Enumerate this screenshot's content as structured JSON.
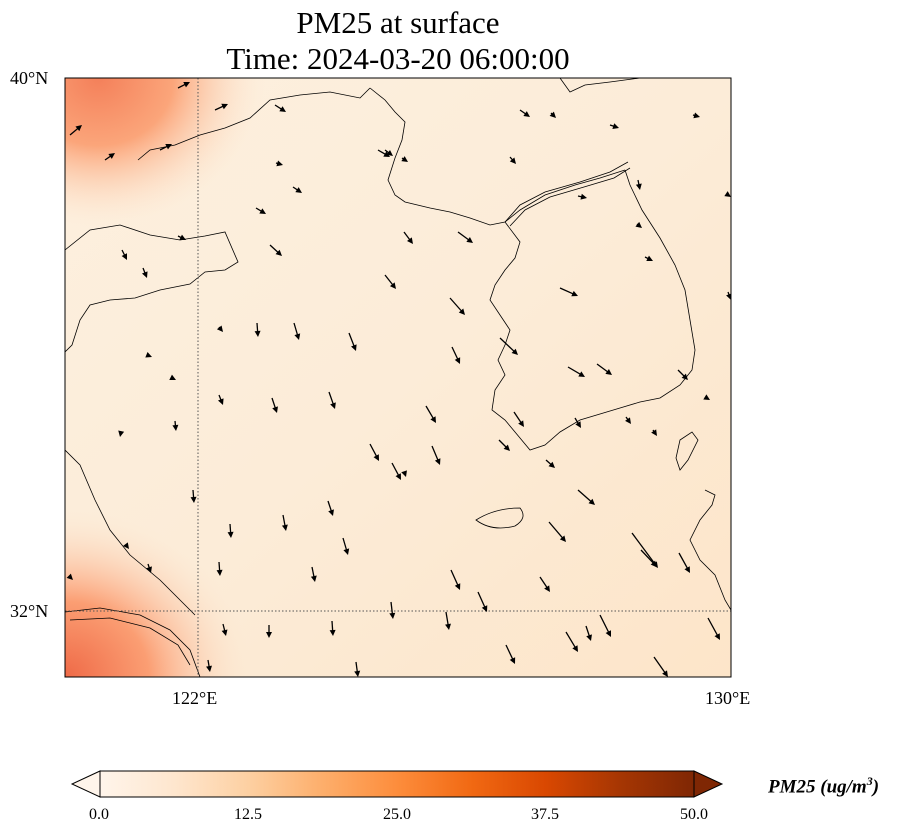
{
  "title_line1": "PM25 at surface",
  "title_line2": "Time: 2024-03-20 06:00:00",
  "lat_labels": [
    "40°N",
    "32°N"
  ],
  "lon_labels": [
    "122°E",
    "130°E"
  ],
  "colorbar": {
    "label_main": "PM25 (ug/m",
    "label_exp": "3",
    "label_close": ")",
    "ticks": [
      "0.0",
      "12.5",
      "25.0",
      "37.5",
      "50.0"
    ],
    "min": 0,
    "max": 50,
    "extend": "both",
    "colors": [
      "#fff5eb",
      "#fee6ce",
      "#fdd0a2",
      "#fdae6b",
      "#fd8d3c",
      "#f16913",
      "#d94801",
      "#a63603",
      "#7f2704"
    ]
  },
  "map_extent": {
    "lon_min": 120,
    "lon_max": 130,
    "lat_min": 31,
    "lat_max": 40
  },
  "gridlines": {
    "lons": [
      122
    ],
    "lats": [
      32
    ],
    "style": "dotted"
  },
  "field": {
    "variable": "PM25",
    "background_level": 2.5,
    "hotspots": [
      "northwest corner",
      "southwest corner"
    ]
  }
}
